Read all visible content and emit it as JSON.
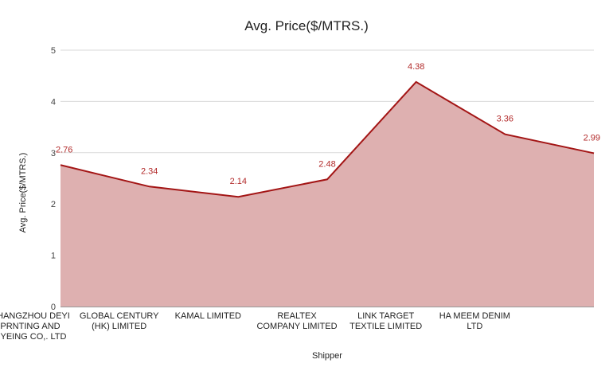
{
  "chart_data": {
    "type": "area",
    "title": "Avg. Price($/MTRS.)",
    "xlabel": "Shipper",
    "ylabel": "Avg. Price($/MTRS.)",
    "ylim": [
      0,
      5
    ],
    "yticks": [
      "0",
      "1",
      "2",
      "3",
      "4",
      "5"
    ],
    "grid": true,
    "categories": [
      [
        "CHANGZHOU DEYI",
        "PRNTING AND",
        "DYEING CO,. LTD"
      ],
      [
        "GLOBAL CENTURY",
        "(HK) LIMITED"
      ],
      [
        "KAMAL LIMITED"
      ],
      [
        "REALTEX",
        "COMPANY LIMITED"
      ],
      [
        "LINK TARGET",
        "TEXTILE LIMITED"
      ],
      [
        "HA MEEM DENIM",
        "LTD"
      ],
      [
        ""
      ]
    ],
    "values": [
      2.76,
      2.34,
      2.14,
      2.48,
      4.38,
      3.36,
      2.99
    ],
    "labels": [
      "2.76",
      "2.34",
      "2.14",
      "2.48",
      "4.38",
      "3.36",
      "2.99"
    ],
    "colors": {
      "line": "#a31515",
      "fill": "#deb0b0",
      "label": "#b22a2a"
    }
  }
}
